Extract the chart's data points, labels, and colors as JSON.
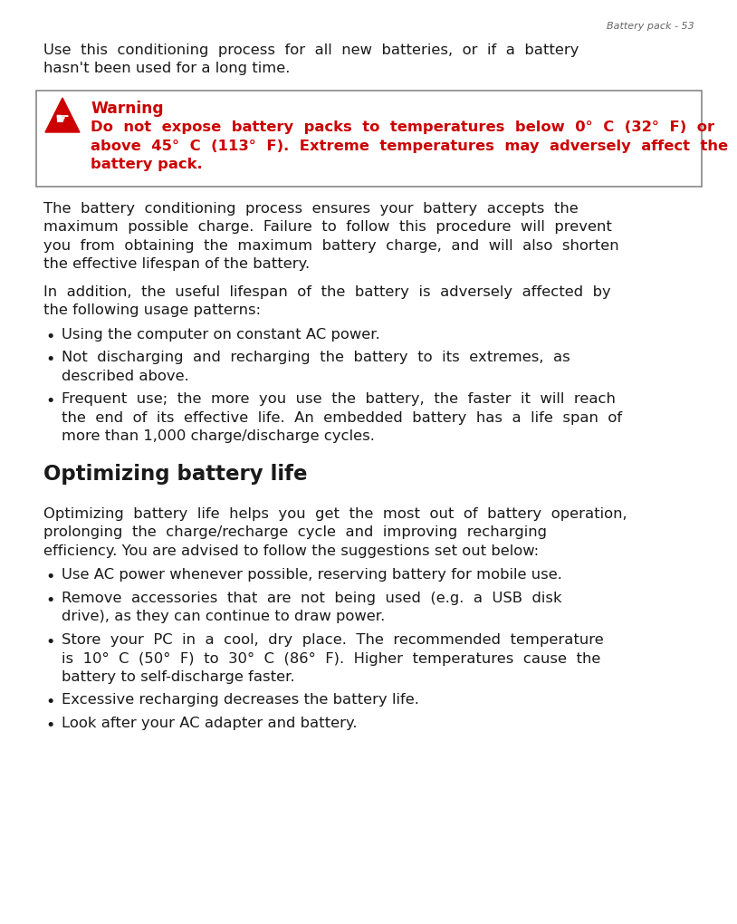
{
  "page_header": "Battery pack - 53",
  "bg_color": "#ffffff",
  "text_color": "#1a1a1a",
  "red_color": "#cc0000",
  "warning_border_color": "#888888",
  "intro_lines": [
    "Use  this  conditioning  process  for  all  new  batteries,  or  if  a  battery",
    "hasn't been used for a long time."
  ],
  "warning_title": "Warning",
  "warning_lines": [
    "Do  not  expose  battery  packs  to  temperatures  below  0°  C  (32°  F)  or",
    "above  45°  C  (113°  F).  Extreme  temperatures  may  adversely  affect  the",
    "battery pack."
  ],
  "para1_lines": [
    "The  battery  conditioning  process  ensures  your  battery  accepts  the",
    "maximum  possible  charge.  Failure  to  follow  this  procedure  will  prevent",
    "you  from  obtaining  the  maximum  battery  charge,  and  will  also  shorten",
    "the effective lifespan of the battery."
  ],
  "para2_lines": [
    "In  addition,  the  useful  lifespan  of  the  battery  is  adversely  affected  by",
    "the following usage patterns:"
  ],
  "bullets1": [
    [
      "Using the computer on constant AC power."
    ],
    [
      "Not  discharging  and  recharging  the  battery  to  its  extremes,  as",
      "described above."
    ],
    [
      "Frequent  use;  the  more  you  use  the  battery,  the  faster  it  will  reach",
      "the  end  of  its  effective  life.  An  embedded  battery  has  a  life  span  of",
      "more than 1,000 charge/discharge cycles."
    ]
  ],
  "section_title": "Optimizing battery life",
  "section_intro_lines": [
    "Optimizing  battery  life  helps  you  get  the  most  out  of  battery  operation,",
    "prolonging  the  charge/recharge  cycle  and  improving  recharging",
    "efficiency. You are advised to follow the suggestions set out below:"
  ],
  "bullets2": [
    [
      "Use AC power whenever possible, reserving battery for mobile use."
    ],
    [
      "Remove  accessories  that  are  not  being  used  (e.g.  a  USB  disk",
      "drive), as they can continue to draw power."
    ],
    [
      "Store  your  PC  in  a  cool,  dry  place.  The  recommended  temperature",
      "is  10°  C  (50°  F)  to  30°  C  (86°  F).  Higher  temperatures  cause  the",
      "battery to self-discharge faster."
    ],
    [
      "Excessive recharging decreases the battery life."
    ],
    [
      "Look after your AC adapter and battery."
    ]
  ]
}
